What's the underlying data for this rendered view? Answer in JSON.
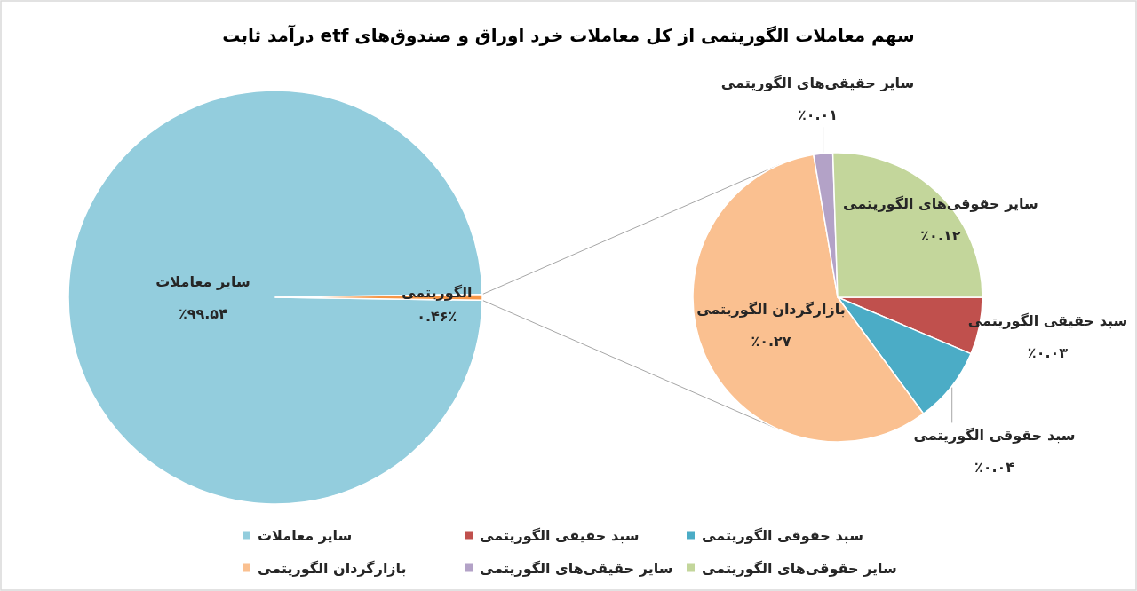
{
  "chart_data": [
    {
      "type": "pie",
      "title": "سهم معاملات الگوریتمی از کل معاملات خرد اوراق و صندوق‌های etf درآمد ثابت",
      "categories": [
        "سایر معاملات",
        "الگوریتمی"
      ],
      "values": [
        99.54,
        0.46
      ],
      "colors": [
        "#93cddd",
        "#f79646"
      ],
      "value_labels": [
        "٪۹۹.۵۴",
        "۰.۴۶٪"
      ],
      "legend": "bottom"
    },
    {
      "type": "pie",
      "categories": [
        "سبد حقیقی الگوریتمی",
        "سبد حقوقی الگوریتمی",
        "بازارگردان الگوریتمی",
        "سایر حقیقی‌های الگوریتمی",
        "سایر حقوقی‌های الگوریتمی"
      ],
      "values": [
        0.03,
        0.04,
        0.27,
        0.01,
        0.12
      ],
      "colors": [
        "#c0504d",
        "#4bacc6",
        "#fac090",
        "#b3a2c7",
        "#c3d69b"
      ],
      "value_labels": [
        "٪۰.۰۳",
        "٪۰.۰۴",
        "٪۰.۲۷",
        "٪۰.۰۱",
        "٪۰.۱۲"
      ],
      "legend": "bottom"
    }
  ]
}
